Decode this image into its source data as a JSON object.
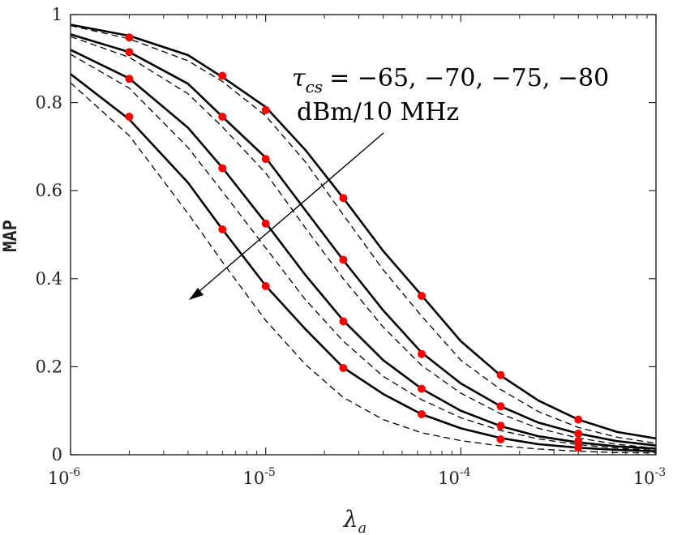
{
  "chart_data": {
    "type": "line",
    "xscale": "log",
    "xlim": [
      1e-06,
      0.001
    ],
    "ylim": [
      0,
      1
    ],
    "grid": false,
    "xlabel_base": "λ",
    "xlabel_sub": "a",
    "ylabel": "MAP",
    "x_ticks": [
      {
        "value": 1e-06,
        "base": "10",
        "exp": "-6"
      },
      {
        "value": 1e-05,
        "base": "10",
        "exp": "-5"
      },
      {
        "value": 0.0001,
        "base": "10",
        "exp": "-4"
      },
      {
        "value": 0.001,
        "base": "10",
        "exp": "-3"
      }
    ],
    "y_ticks": [
      {
        "value": 0,
        "label": "0"
      },
      {
        "value": 0.2,
        "label": "0.2"
      },
      {
        "value": 0.4,
        "label": "0.4"
      },
      {
        "value": 0.6,
        "label": "0.6"
      },
      {
        "value": 0.8,
        "label": "0.8"
      },
      {
        "value": 1,
        "label": "1"
      }
    ],
    "annotation": {
      "tau_symbol": "τ",
      "tau_sub": "cs",
      "values": "= −65, −70, −75, −80",
      "unit": "dBm/10 MHz"
    },
    "series": [
      {
        "name": "-65 dBm/10 MHz solid",
        "style": "solid",
        "x": [
          1e-06,
          2e-06,
          4e-06,
          6e-06,
          1e-05,
          1.6e-05,
          2.5e-05,
          4e-05,
          6.3e-05,
          0.0001,
          0.00016,
          0.00025,
          0.0004,
          0.00063,
          0.001
        ],
        "y": [
          0.977,
          0.952,
          0.908,
          0.858,
          0.79,
          0.692,
          0.583,
          0.463,
          0.362,
          0.258,
          0.18,
          0.123,
          0.08,
          0.052,
          0.037
        ]
      },
      {
        "name": "-65 dBm/10 MHz dashed",
        "style": "dashed",
        "x": [
          1e-06,
          2e-06,
          4e-06,
          6e-06,
          1e-05,
          1.6e-05,
          2.5e-05,
          4e-05,
          6.3e-05,
          0.0001,
          0.00016,
          0.00025,
          0.0004,
          0.00063,
          0.001
        ],
        "y": [
          0.975,
          0.945,
          0.895,
          0.848,
          0.77,
          0.665,
          0.545,
          0.42,
          0.315,
          0.215,
          0.148,
          0.098,
          0.062,
          0.04,
          0.026
        ]
      },
      {
        "name": "-70 dBm/10 MHz solid",
        "style": "solid",
        "x": [
          1e-06,
          2e-06,
          4e-06,
          6e-06,
          1e-05,
          1.6e-05,
          2.5e-05,
          4e-05,
          6.3e-05,
          0.0001,
          0.00016,
          0.00025,
          0.0004,
          0.00063,
          0.001
        ],
        "y": [
          0.955,
          0.915,
          0.843,
          0.768,
          0.675,
          0.555,
          0.442,
          0.328,
          0.232,
          0.162,
          0.11,
          0.073,
          0.048,
          0.031,
          0.021
        ]
      },
      {
        "name": "-70 dBm/10 MHz dashed",
        "style": "dashed",
        "x": [
          1e-06,
          2e-06,
          4e-06,
          6e-06,
          1e-05,
          1.6e-05,
          2.5e-05,
          4e-05,
          6.3e-05,
          0.0001,
          0.00016,
          0.00025,
          0.0004,
          0.00063,
          0.001
        ],
        "y": [
          0.95,
          0.903,
          0.82,
          0.745,
          0.64,
          0.515,
          0.4,
          0.29,
          0.203,
          0.14,
          0.093,
          0.06,
          0.038,
          0.024,
          0.015
        ]
      },
      {
        "name": "-75 dBm/10 MHz solid",
        "style": "solid",
        "x": [
          1e-06,
          2e-06,
          4e-06,
          6e-06,
          1e-05,
          1.6e-05,
          2.5e-05,
          4e-05,
          6.3e-05,
          0.0001,
          0.00016,
          0.00025,
          0.0004,
          0.00063,
          0.001
        ],
        "y": [
          0.92,
          0.855,
          0.743,
          0.652,
          0.527,
          0.408,
          0.305,
          0.215,
          0.15,
          0.1,
          0.065,
          0.042,
          0.028,
          0.019,
          0.014
        ]
      },
      {
        "name": "-75 dBm/10 MHz dashed",
        "style": "dashed",
        "x": [
          1e-06,
          2e-06,
          4e-06,
          6e-06,
          1e-05,
          1.6e-05,
          2.5e-05,
          4e-05,
          6.3e-05,
          0.0001,
          0.00016,
          0.00025,
          0.0004,
          0.00063,
          0.001
        ],
        "y": [
          0.91,
          0.833,
          0.698,
          0.598,
          0.47,
          0.352,
          0.258,
          0.178,
          0.125,
          0.084,
          0.055,
          0.036,
          0.023,
          0.015,
          0.01
        ]
      },
      {
        "name": "-80 dBm/10 MHz solid",
        "style": "solid",
        "x": [
          1e-06,
          2e-06,
          4e-06,
          6e-06,
          1e-05,
          1.6e-05,
          2.5e-05,
          4e-05,
          6.3e-05,
          0.0001,
          0.00016,
          0.00025,
          0.0004,
          0.00063,
          0.001
        ],
        "y": [
          0.865,
          0.762,
          0.618,
          0.512,
          0.384,
          0.285,
          0.198,
          0.138,
          0.092,
          0.06,
          0.038,
          0.024,
          0.016,
          0.011,
          0.008
        ]
      },
      {
        "name": "-80 dBm/10 MHz dashed",
        "style": "dashed",
        "x": [
          1e-06,
          2e-06,
          4e-06,
          6e-06,
          1e-05,
          1.6e-05,
          2.5e-05,
          4e-05,
          6.3e-05,
          0.0001,
          0.00016,
          0.00025,
          0.0004,
          0.00063,
          0.001
        ],
        "y": [
          0.845,
          0.725,
          0.548,
          0.438,
          0.305,
          0.205,
          0.13,
          0.08,
          0.05,
          0.032,
          0.02,
          0.013,
          0.008,
          0.005,
          0.004
        ]
      }
    ],
    "markers": {
      "color": "#ff0000",
      "x": [
        2e-06,
        6e-06,
        1e-05,
        2.5e-05,
        6.3e-05,
        0.00016,
        0.0004
      ],
      "series_y": [
        [
          0.948,
          0.861,
          0.783,
          0.583,
          0.361,
          0.181,
          0.08
        ],
        [
          0.915,
          0.768,
          0.672,
          0.443,
          0.229,
          0.11,
          0.048
        ],
        [
          0.854,
          0.651,
          0.525,
          0.303,
          0.15,
          0.066,
          0.031
        ],
        [
          0.768,
          0.512,
          0.383,
          0.197,
          0.092,
          0.035,
          0.016
        ]
      ]
    }
  }
}
